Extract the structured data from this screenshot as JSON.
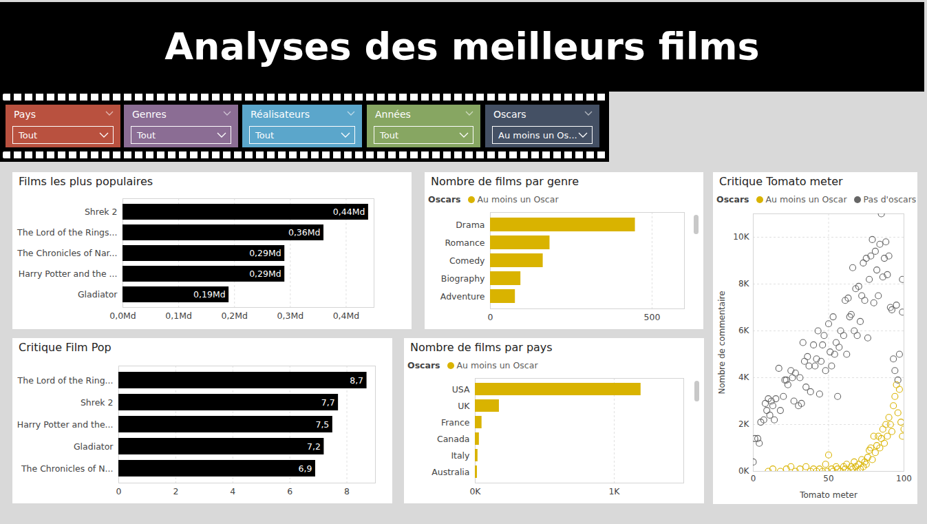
{
  "title": "Analyses des meilleurs films",
  "filters": [
    {
      "label": "Pays",
      "value": "Tout"
    },
    {
      "label": "Genres",
      "value": "Tout"
    },
    {
      "label": "Réalisateurs",
      "value": "Tout"
    },
    {
      "label": "Années",
      "value": "Tout"
    },
    {
      "label": "Oscars",
      "value": "Au moins un Os..."
    }
  ],
  "chart_data": [
    {
      "type": "bar",
      "title": "Films les plus populaires",
      "orientation": "horizontal",
      "categories": [
        "Shrek 2",
        "The Lord of the Rings...",
        "The Chronicles of Nar...",
        "Harry Potter and the ...",
        "Gladiator"
      ],
      "values": [
        0.44,
        0.36,
        0.29,
        0.29,
        0.19
      ],
      "value_labels": [
        "0,44Md",
        "0,36Md",
        "0,29Md",
        "0,29Md",
        "0,19Md"
      ],
      "color": "#000000",
      "xlim": [
        0,
        0.45
      ],
      "xticks": [
        {
          "value": 0,
          "label": "0,0Md"
        },
        {
          "value": 0.1,
          "label": "0,1Md"
        },
        {
          "value": 0.2,
          "label": "0,2Md"
        },
        {
          "value": 0.3,
          "label": "0,3Md"
        },
        {
          "value": 0.4,
          "label": "0,4Md"
        }
      ],
      "grid": true,
      "data_labels": true
    },
    {
      "type": "bar",
      "title": "Critique Film Pop",
      "orientation": "horizontal",
      "categories": [
        "The Lord of the Ring...",
        "Shrek 2",
        "Harry Potter and the...",
        "Gladiator",
        "The Chronicles of N..."
      ],
      "values": [
        8.7,
        7.7,
        7.5,
        7.2,
        6.9
      ],
      "value_labels": [
        "8,7",
        "7,7",
        "7,5",
        "7,2",
        "6,9"
      ],
      "color": "#000000",
      "xlim": [
        0,
        9
      ],
      "xticks": [
        0,
        2,
        4,
        6,
        8
      ],
      "grid": true,
      "data_labels": true
    },
    {
      "type": "bar",
      "title": "Nombre de films par genre",
      "orientation": "horizontal",
      "legend_title": "Oscars",
      "legend": "top-left",
      "categories": [
        "Drama",
        "Romance",
        "Comedy",
        "Biography",
        "Adventure"
      ],
      "series": [
        {
          "name": "Au moins un Oscar",
          "color": "#d9b300",
          "values": [
            448,
            184,
            163,
            94,
            77
          ]
        }
      ],
      "xlim": [
        0,
        600
      ],
      "xticks": [
        0,
        500
      ],
      "grid": true,
      "data_labels": false
    },
    {
      "type": "bar",
      "title": "Nombre de films par pays",
      "orientation": "horizontal",
      "legend_title": "Oscars",
      "legend": "top-left",
      "categories": [
        "USA",
        "UK",
        "France",
        "Canada",
        "Italy",
        "Australia"
      ],
      "series": [
        {
          "name": "Au moins un Oscar",
          "color": "#d9b300",
          "values": [
            1192,
            173,
            48,
            29,
            19,
            15
          ]
        }
      ],
      "xlim": [
        0,
        1500
      ],
      "xticks": [
        {
          "value": 0,
          "label": "0K"
        },
        {
          "value": 1000,
          "label": "1K"
        }
      ],
      "grid": true,
      "data_labels": false
    },
    {
      "type": "scatter",
      "title": "Critique Tomato meter",
      "legend_title": "Oscars",
      "legend": "top-left",
      "x_label": "Tomato meter",
      "y_label": "Nombre de commentaire",
      "xlim": [
        0,
        100
      ],
      "xticks": [
        0,
        50,
        100
      ],
      "ylim": [
        0,
        11000
      ],
      "yticks": [
        {
          "value": 0,
          "label": "0K"
        },
        {
          "value": 2000,
          "label": "2K"
        },
        {
          "value": 4000,
          "label": "4K"
        },
        {
          "value": 6000,
          "label": "6K"
        },
        {
          "value": 8000,
          "label": "8K"
        },
        {
          "value": 10000,
          "label": "10K"
        }
      ],
      "grid": true,
      "marker": "circle",
      "series": [
        {
          "name": "Au moins un Oscar",
          "color": "#d9b300",
          "x": [
            10,
            13,
            18,
            22,
            25,
            28,
            31,
            35,
            38,
            40,
            42,
            44,
            46,
            48,
            49,
            50,
            52,
            53,
            55,
            56,
            58,
            60,
            61,
            62,
            63,
            65,
            66,
            67,
            68,
            69,
            70,
            71,
            72,
            73,
            74,
            75,
            76,
            77,
            78,
            79,
            80,
            81,
            82,
            83,
            84,
            85,
            86,
            87,
            88,
            89,
            90,
            91,
            92,
            93,
            94,
            95,
            96,
            97,
            98,
            99,
            100
          ],
          "values": [
            0,
            100,
            0,
            100,
            200,
            0,
            100,
            200,
            0,
            100,
            0,
            100,
            0,
            300,
            0,
            700,
            100,
            0,
            200,
            100,
            0,
            200,
            100,
            300,
            0,
            200,
            100,
            400,
            200,
            0,
            300,
            100,
            500,
            200,
            400,
            300,
            600,
            900,
            1000,
            500,
            1500,
            800,
            1100,
            1500,
            1000,
            1400,
            1800,
            1200,
            2000,
            1500,
            2300,
            2000,
            1700,
            2800,
            3200,
            3700,
            2500,
            3500,
            2100,
            1500,
            1800
          ]
        },
        {
          "name": "Pas d'oscars",
          "color": "#666666",
          "x": [
            0,
            1,
            3,
            4,
            5,
            7,
            8,
            9,
            10,
            11,
            12,
            13,
            14,
            15,
            17,
            18,
            20,
            21,
            22,
            23,
            25,
            26,
            27,
            28,
            30,
            31,
            32,
            33,
            34,
            35,
            36,
            37,
            38,
            40,
            41,
            42,
            43,
            44,
            45,
            46,
            47,
            48,
            50,
            51,
            52,
            53,
            54,
            55,
            56,
            57,
            58,
            60,
            61,
            62,
            63,
            64,
            65,
            66,
            67,
            68,
            69,
            70,
            71,
            72,
            73,
            74,
            75,
            76,
            77,
            78,
            79,
            80,
            81,
            82,
            83,
            84,
            85,
            86,
            87,
            88,
            89,
            90,
            91,
            92,
            93,
            94,
            95,
            96,
            97,
            99,
            99
          ],
          "values": [
            400,
            1400,
            1400,
            1200,
            2100,
            2200,
            2900,
            2600,
            3100,
            2400,
            3000,
            2800,
            2200,
            3100,
            4400,
            2600,
            3200,
            3900,
            3900,
            3700,
            4300,
            4000,
            3000,
            4200,
            2800,
            4000,
            2900,
            5500,
            4700,
            3600,
            4900,
            4500,
            3400,
            5400,
            4500,
            4800,
            6000,
            3300,
            4700,
            5400,
            5800,
            4300,
            6300,
            5100,
            4500,
            6600,
            5000,
            5500,
            3200,
            5300,
            6000,
            5800,
            7300,
            5000,
            7400,
            6600,
            6700,
            8700,
            6000,
            7800,
            5800,
            7900,
            6400,
            7500,
            8900,
            7300,
            9100,
            5700,
            8200,
            9200,
            9900,
            7200,
            9400,
            8600,
            7500,
            9700,
            11000,
            8300,
            9100,
            9800,
            8400,
            9200,
            7000,
            6900,
            4800,
            4300,
            7100,
            3900,
            5000,
            8200,
            6800
          ]
        }
      ]
    }
  ]
}
